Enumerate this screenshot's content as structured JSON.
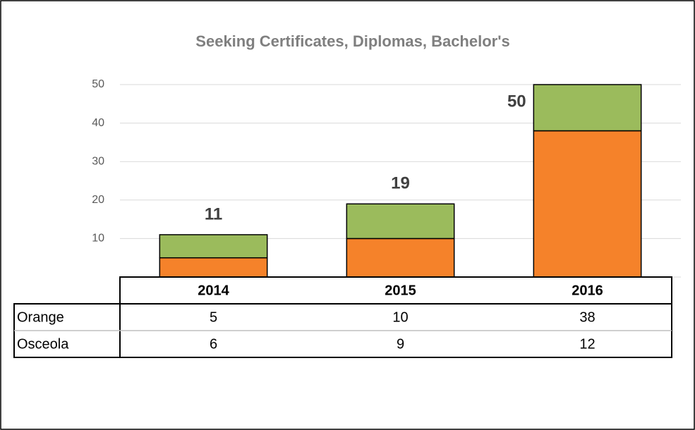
{
  "chart_data": {
    "type": "stacked_bar",
    "title": "Seeking Certificates, Diplomas, Bachelor's",
    "categories": [
      "2014",
      "2015",
      "2016"
    ],
    "series": [
      {
        "name": "Orange",
        "color": "#f5822a",
        "values": [
          5,
          10,
          38
        ]
      },
      {
        "name": "Osceola",
        "color": "#9bbb5c",
        "values": [
          6,
          9,
          12
        ]
      }
    ],
    "totals": [
      11,
      19,
      50
    ],
    "ylim": [
      0,
      50
    ],
    "yticks": [
      10,
      20,
      30,
      40,
      50
    ],
    "grid": true,
    "data_table": true
  }
}
